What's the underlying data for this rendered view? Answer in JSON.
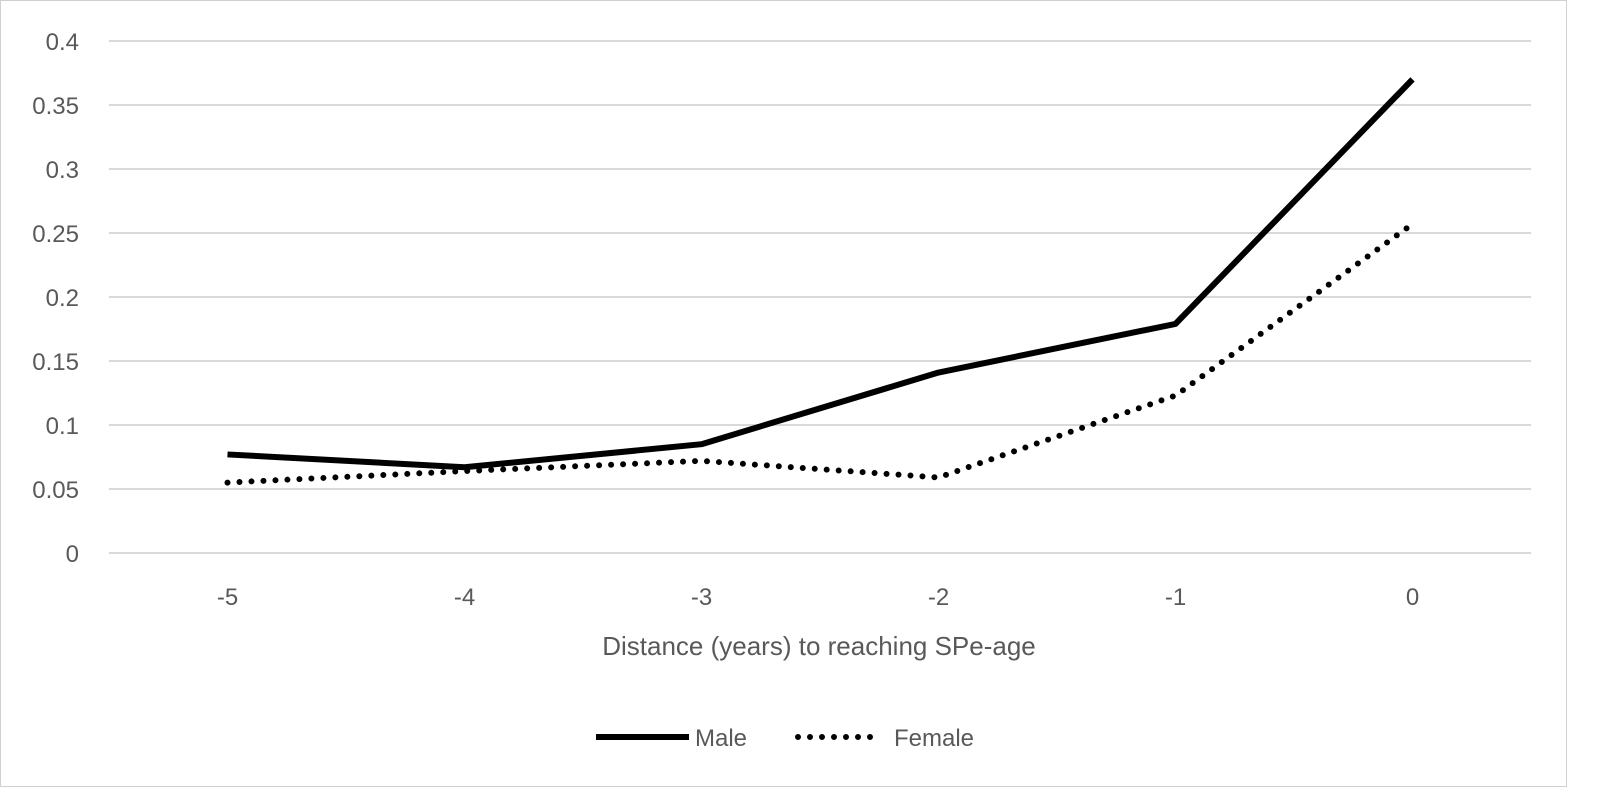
{
  "chart_data": {
    "type": "line",
    "title": "",
    "xlabel": "Distance (years) to reaching SPe-age",
    "ylabel": "",
    "categories": [
      "-5",
      "-4",
      "-3",
      "-2",
      "-1",
      "0"
    ],
    "ylim": [
      0,
      0.4
    ],
    "yticks": [
      "0",
      "0.05",
      "0.1",
      "0.15",
      "0.2",
      "0.25",
      "0.3",
      "0.35",
      "0.4"
    ],
    "grid": true,
    "legend_position": "bottom",
    "series": [
      {
        "name": "Male",
        "style": "solid",
        "color": "#000000",
        "values": [
          0.077,
          0.067,
          0.085,
          0.141,
          0.179,
          0.37
        ]
      },
      {
        "name": "Female",
        "style": "dotted",
        "color": "#000000",
        "values": [
          0.055,
          0.064,
          0.072,
          0.059,
          0.123,
          0.257
        ]
      }
    ]
  }
}
